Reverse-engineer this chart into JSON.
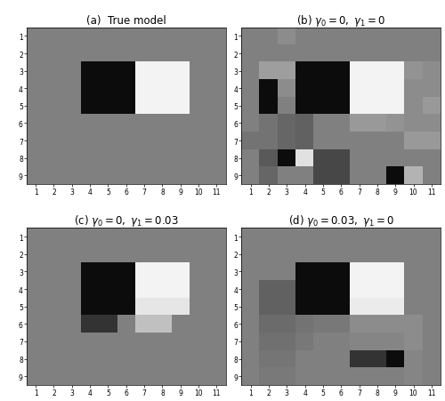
{
  "titles": [
    "(a)  True model",
    "(b) $\\gamma_0 = 0,\\ \\gamma_1 = 0$",
    "(c) $\\gamma_0 = 0,\\ \\gamma_1 = 0.03$",
    "(d) $\\gamma_0 = 0.03,\\ \\gamma_1 = 0$"
  ],
  "figsize": [
    5.0,
    4.52
  ],
  "dpi": 100,
  "model_a": [
    [
      0.5,
      0.5,
      0.5,
      0.5,
      0.5,
      0.5,
      0.5,
      0.5,
      0.5,
      0.5,
      0.5
    ],
    [
      0.5,
      0.5,
      0.5,
      0.5,
      0.5,
      0.5,
      0.5,
      0.5,
      0.5,
      0.5,
      0.5
    ],
    [
      0.5,
      0.5,
      0.5,
      0.05,
      0.05,
      0.05,
      0.95,
      0.95,
      0.95,
      0.5,
      0.5
    ],
    [
      0.5,
      0.5,
      0.5,
      0.05,
      0.05,
      0.05,
      0.95,
      0.95,
      0.95,
      0.5,
      0.5
    ],
    [
      0.5,
      0.5,
      0.5,
      0.05,
      0.05,
      0.05,
      0.95,
      0.95,
      0.95,
      0.5,
      0.5
    ],
    [
      0.5,
      0.5,
      0.5,
      0.5,
      0.5,
      0.5,
      0.5,
      0.5,
      0.5,
      0.5,
      0.5
    ],
    [
      0.5,
      0.5,
      0.5,
      0.5,
      0.5,
      0.5,
      0.5,
      0.5,
      0.5,
      0.5,
      0.5
    ],
    [
      0.5,
      0.5,
      0.5,
      0.5,
      0.5,
      0.5,
      0.5,
      0.5,
      0.5,
      0.5,
      0.5
    ],
    [
      0.5,
      0.5,
      0.5,
      0.5,
      0.5,
      0.5,
      0.5,
      0.5,
      0.5,
      0.5,
      0.5
    ]
  ],
  "model_b": [
    [
      0.5,
      0.5,
      0.55,
      0.5,
      0.5,
      0.5,
      0.5,
      0.5,
      0.5,
      0.5,
      0.5
    ],
    [
      0.5,
      0.5,
      0.5,
      0.5,
      0.5,
      0.5,
      0.5,
      0.5,
      0.5,
      0.5,
      0.5
    ],
    [
      0.5,
      0.62,
      0.62,
      0.05,
      0.05,
      0.05,
      0.95,
      0.95,
      0.95,
      0.58,
      0.55
    ],
    [
      0.5,
      0.05,
      0.55,
      0.05,
      0.05,
      0.05,
      0.95,
      0.95,
      0.95,
      0.55,
      0.55
    ],
    [
      0.5,
      0.05,
      0.5,
      0.05,
      0.05,
      0.05,
      0.95,
      0.95,
      0.95,
      0.55,
      0.6
    ],
    [
      0.5,
      0.45,
      0.4,
      0.38,
      0.5,
      0.5,
      0.6,
      0.6,
      0.58,
      0.55,
      0.55
    ],
    [
      0.45,
      0.45,
      0.4,
      0.38,
      0.5,
      0.5,
      0.5,
      0.5,
      0.5,
      0.6,
      0.6
    ],
    [
      0.5,
      0.35,
      0.05,
      0.88,
      0.28,
      0.28,
      0.5,
      0.5,
      0.5,
      0.5,
      0.5
    ],
    [
      0.5,
      0.4,
      0.5,
      0.5,
      0.28,
      0.28,
      0.5,
      0.5,
      0.05,
      0.7,
      0.5
    ]
  ],
  "model_c": [
    [
      0.5,
      0.5,
      0.5,
      0.5,
      0.5,
      0.5,
      0.5,
      0.5,
      0.5,
      0.5,
      0.5
    ],
    [
      0.5,
      0.5,
      0.5,
      0.5,
      0.5,
      0.5,
      0.5,
      0.5,
      0.5,
      0.5,
      0.5
    ],
    [
      0.5,
      0.5,
      0.5,
      0.05,
      0.05,
      0.05,
      0.95,
      0.95,
      0.95,
      0.5,
      0.5
    ],
    [
      0.5,
      0.5,
      0.5,
      0.05,
      0.05,
      0.05,
      0.95,
      0.95,
      0.95,
      0.5,
      0.5
    ],
    [
      0.5,
      0.5,
      0.5,
      0.05,
      0.05,
      0.05,
      0.9,
      0.9,
      0.9,
      0.5,
      0.5
    ],
    [
      0.5,
      0.5,
      0.5,
      0.2,
      0.2,
      0.5,
      0.75,
      0.75,
      0.5,
      0.5,
      0.5
    ],
    [
      0.5,
      0.5,
      0.5,
      0.5,
      0.5,
      0.5,
      0.5,
      0.5,
      0.5,
      0.5,
      0.5
    ],
    [
      0.5,
      0.5,
      0.5,
      0.5,
      0.5,
      0.5,
      0.5,
      0.5,
      0.5,
      0.5,
      0.5
    ],
    [
      0.5,
      0.5,
      0.5,
      0.5,
      0.5,
      0.5,
      0.5,
      0.5,
      0.5,
      0.5,
      0.5
    ]
  ],
  "model_d": [
    [
      0.5,
      0.5,
      0.5,
      0.5,
      0.5,
      0.5,
      0.5,
      0.5,
      0.5,
      0.5,
      0.5
    ],
    [
      0.5,
      0.5,
      0.5,
      0.5,
      0.5,
      0.5,
      0.5,
      0.5,
      0.5,
      0.5,
      0.5
    ],
    [
      0.5,
      0.5,
      0.5,
      0.05,
      0.05,
      0.05,
      0.95,
      0.95,
      0.95,
      0.5,
      0.5
    ],
    [
      0.5,
      0.38,
      0.38,
      0.05,
      0.05,
      0.05,
      0.95,
      0.95,
      0.95,
      0.5,
      0.5
    ],
    [
      0.5,
      0.38,
      0.38,
      0.05,
      0.05,
      0.05,
      0.92,
      0.92,
      0.92,
      0.5,
      0.5
    ],
    [
      0.5,
      0.42,
      0.42,
      0.45,
      0.47,
      0.47,
      0.55,
      0.55,
      0.55,
      0.55,
      0.5
    ],
    [
      0.5,
      0.44,
      0.44,
      0.47,
      0.5,
      0.5,
      0.52,
      0.52,
      0.52,
      0.55,
      0.5
    ],
    [
      0.5,
      0.46,
      0.46,
      0.5,
      0.5,
      0.5,
      0.2,
      0.2,
      0.05,
      0.52,
      0.5
    ],
    [
      0.5,
      0.48,
      0.48,
      0.5,
      0.5,
      0.5,
      0.5,
      0.5,
      0.5,
      0.52,
      0.5
    ]
  ]
}
